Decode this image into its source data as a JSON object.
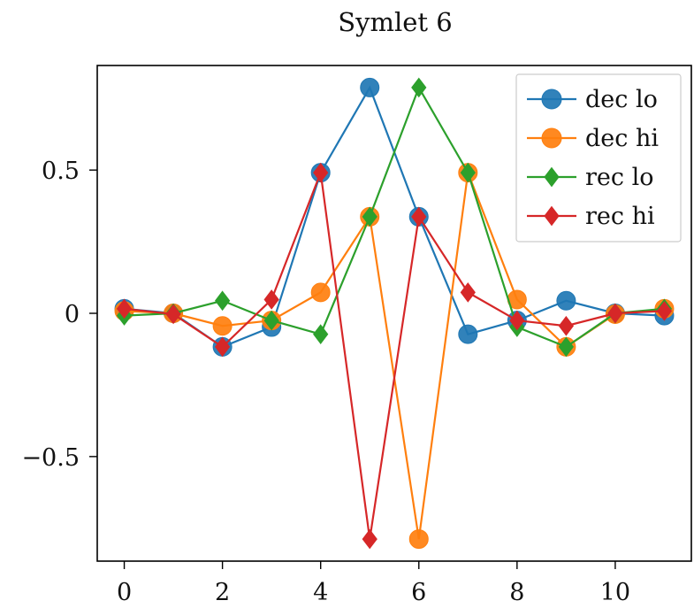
{
  "chart_data": {
    "type": "line",
    "title": "Symlet 6",
    "xlabel": "",
    "ylabel": "",
    "x": [
      0,
      1,
      2,
      3,
      4,
      5,
      6,
      7,
      8,
      9,
      10,
      11
    ],
    "xlim": [
      -0.55,
      11.55
    ],
    "ylim": [
      -0.865,
      0.865
    ],
    "xticks": [
      0,
      2,
      4,
      6,
      8,
      10
    ],
    "xtick_labels": [
      "0",
      "2",
      "4",
      "6",
      "8",
      "10"
    ],
    "yticks": [
      -0.5,
      0,
      0.5
    ],
    "ytick_labels": [
      "−0.5",
      "0",
      "0.5"
    ],
    "grid": false,
    "legend_position": "top-right",
    "series": [
      {
        "name": "dec lo",
        "color": "#1f77b4",
        "marker": "circle",
        "values": [
          0.016,
          0.0,
          -0.117,
          -0.048,
          0.491,
          0.788,
          0.337,
          -0.073,
          -0.025,
          0.044,
          0.0,
          -0.008
        ]
      },
      {
        "name": "dec hi",
        "color": "#ff7f0e",
        "marker": "circle",
        "values": [
          0.008,
          0.0,
          -0.044,
          -0.025,
          0.073,
          0.337,
          -0.788,
          0.491,
          0.048,
          -0.117,
          -0.003,
          0.016
        ]
      },
      {
        "name": "rec lo",
        "color": "#2ca02c",
        "marker": "diamond",
        "values": [
          -0.008,
          0.0,
          0.044,
          -0.025,
          -0.073,
          0.337,
          0.788,
          0.491,
          -0.048,
          -0.117,
          0.0,
          0.016
        ]
      },
      {
        "name": "rec hi",
        "color": "#d62728",
        "marker": "diamond",
        "values": [
          0.016,
          -0.003,
          -0.117,
          0.048,
          0.491,
          -0.788,
          0.337,
          0.073,
          -0.025,
          -0.044,
          0.0,
          0.008
        ]
      }
    ]
  }
}
